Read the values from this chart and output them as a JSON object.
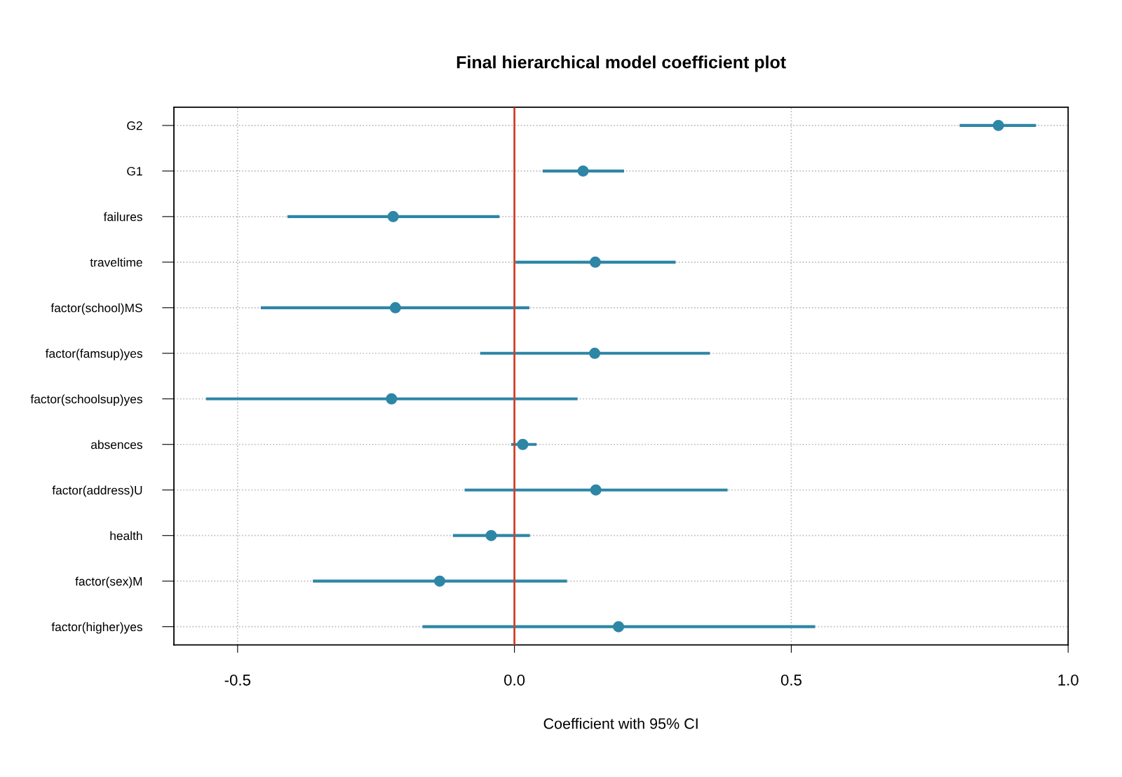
{
  "chart_data": {
    "type": "scatter",
    "orientation": "horizontal",
    "title": "Final hierarchical model coefficient plot",
    "xlabel": "Coefficient with 95% CI",
    "categories": [
      "G2",
      "G1",
      "failures",
      "traveltime",
      "factor(school)MS",
      "factor(famsup)yes",
      "factor(schoolsup)yes",
      "absences",
      "factor(address)U",
      "health",
      "factor(sex)M",
      "factor(higher)yes"
    ],
    "series": [
      {
        "color": "#2e86a6",
        "values": [
          0.874,
          0.124,
          -0.219,
          0.146,
          -0.215,
          0.145,
          -0.222,
          0.015,
          0.147,
          -0.042,
          -0.135,
          0.188
        ],
        "errors": [
          [
            0.804,
            0.942
          ],
          [
            0.051,
            0.198
          ],
          [
            -0.41,
            -0.027
          ],
          [
            0.002,
            0.291
          ],
          [
            -0.458,
            0.027
          ],
          [
            -0.062,
            0.353
          ],
          [
            -0.557,
            0.114
          ],
          [
            -0.006,
            0.04
          ],
          [
            -0.09,
            0.385
          ],
          [
            -0.111,
            0.028
          ],
          [
            -0.364,
            0.095
          ],
          [
            -0.166,
            0.543
          ]
        ]
      }
    ],
    "xlim": [
      -0.615,
      1.0
    ],
    "xticks": [
      {
        "value": -0.5,
        "label": "-0.5"
      },
      {
        "value": 0,
        "label": "0.0"
      },
      {
        "value": 0.5,
        "label": "0.5"
      },
      {
        "value": 1.0,
        "label": "1.0"
      }
    ],
    "ref_lines": [
      {
        "axis": "x",
        "value": 0,
        "color": "#d0402a"
      }
    ],
    "grid": true,
    "marker": "circle",
    "legend": false
  }
}
